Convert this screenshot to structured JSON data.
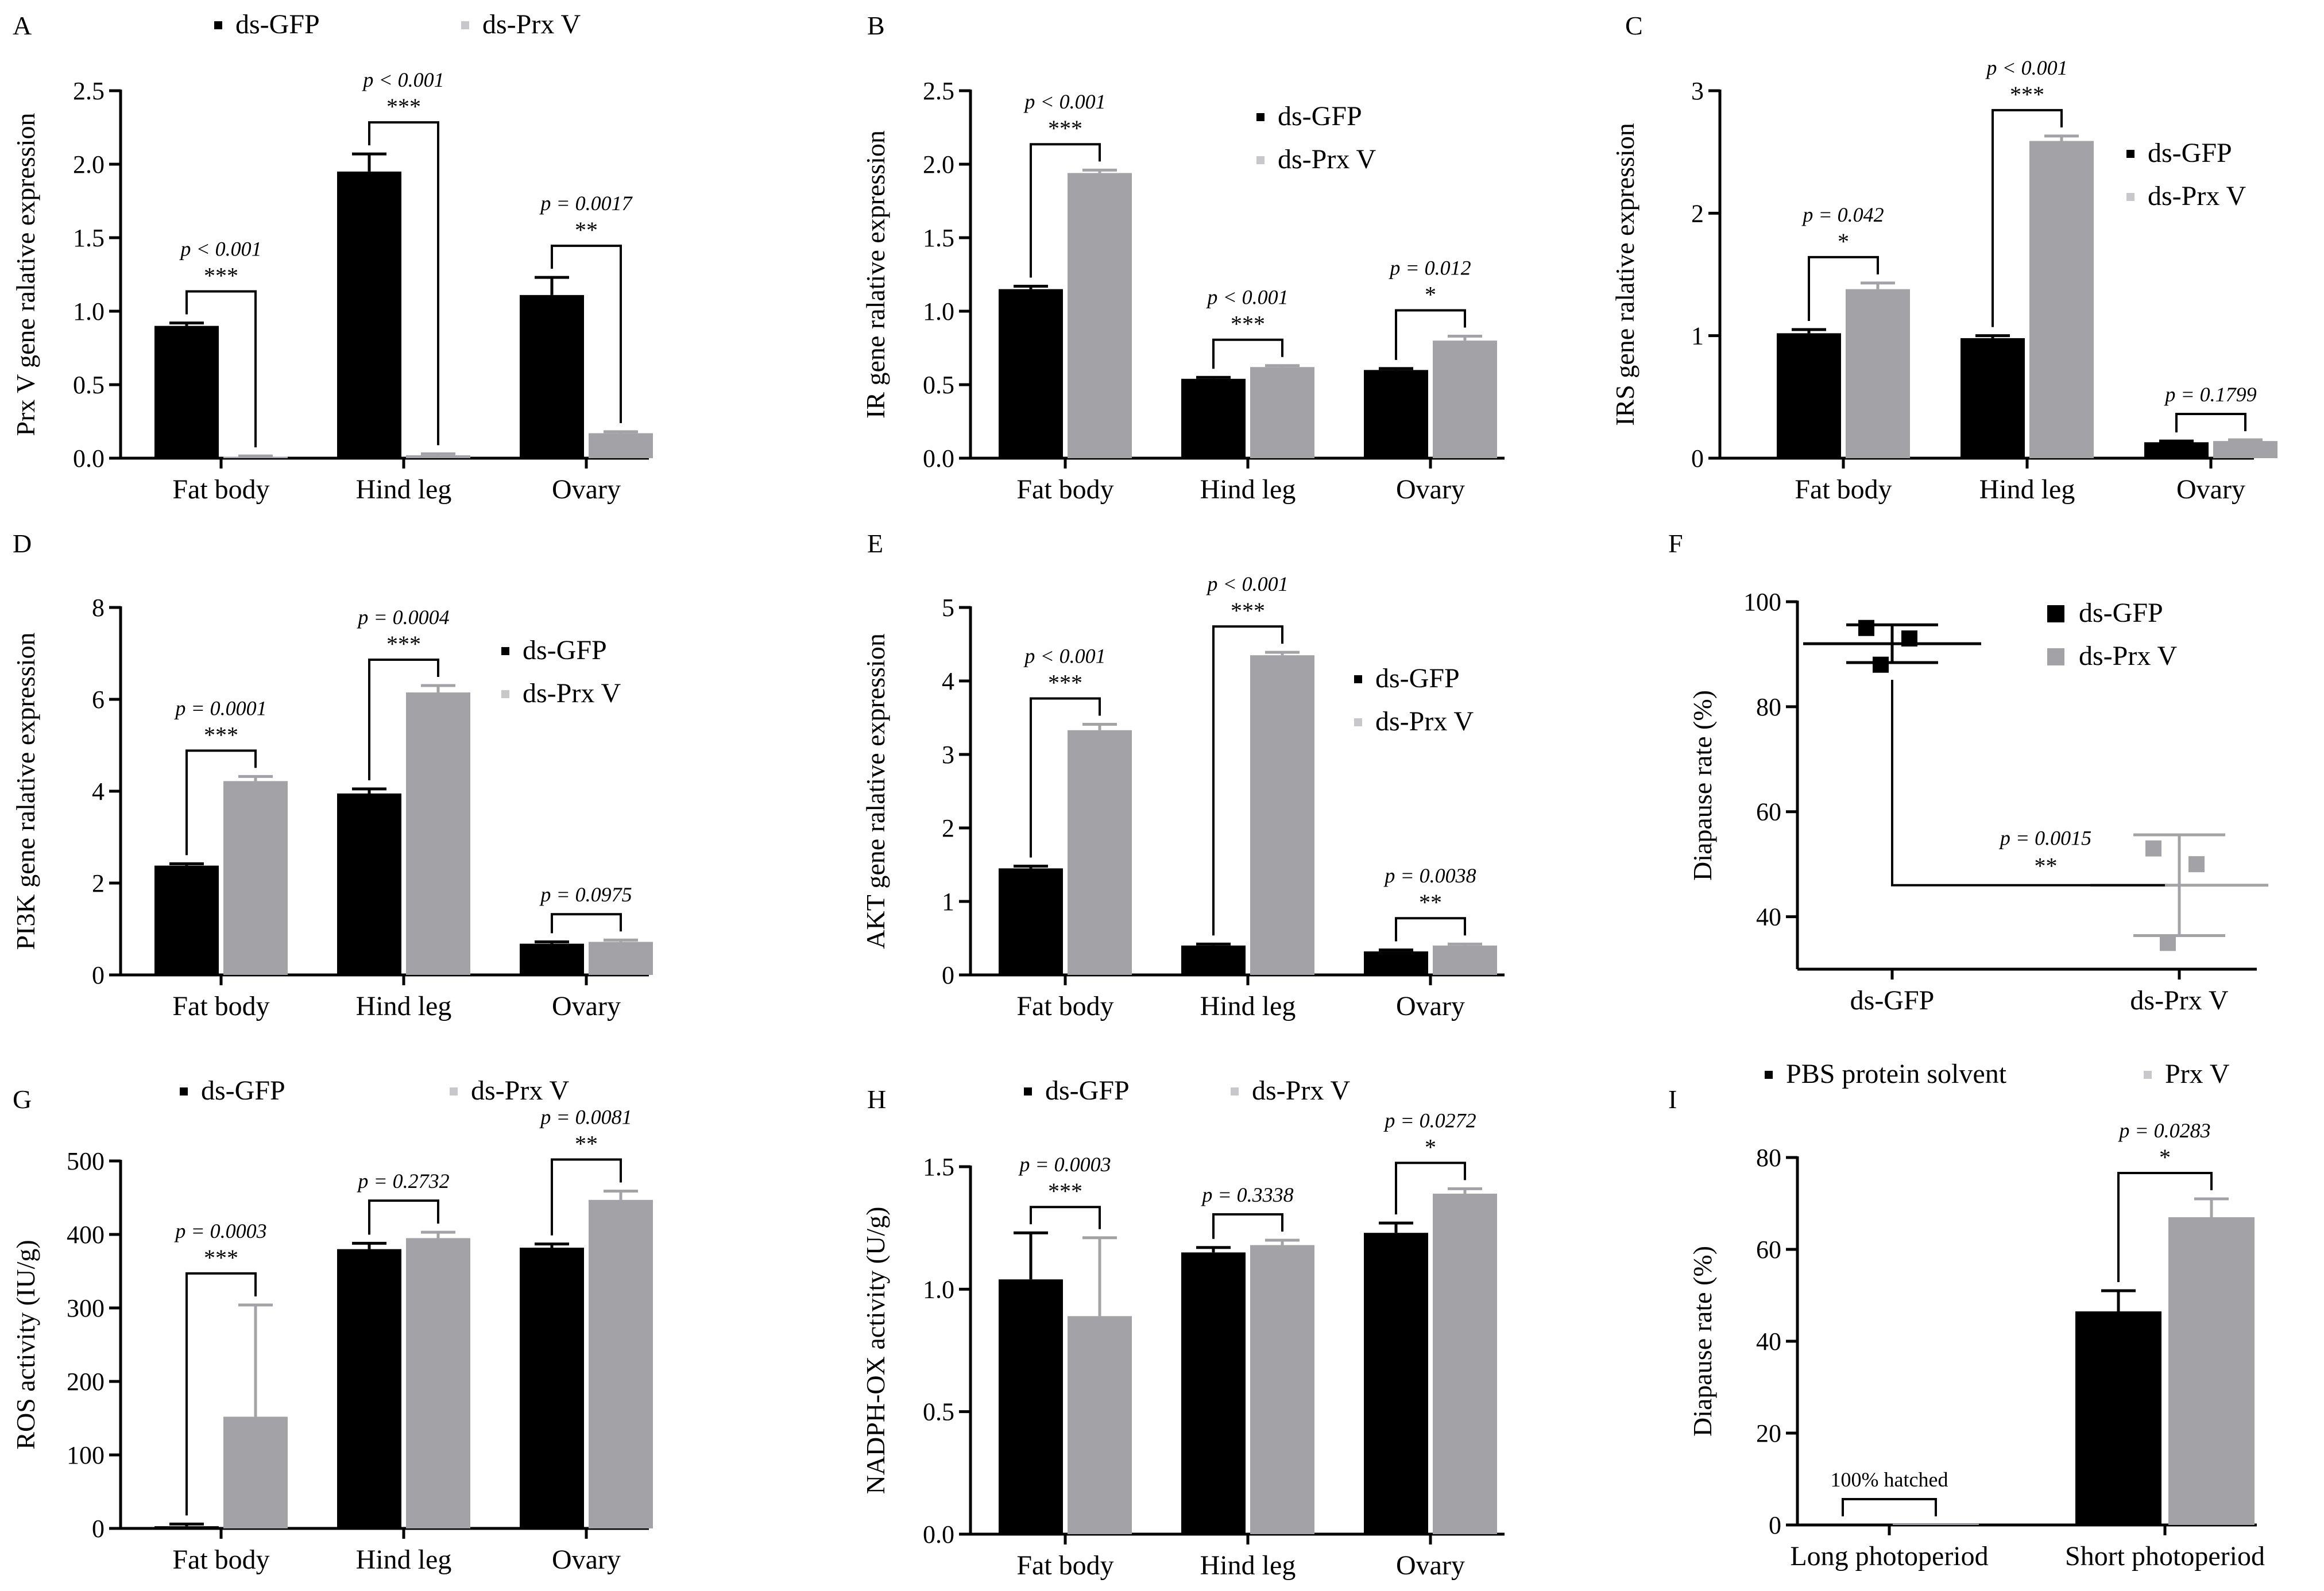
{
  "colors": {
    "ds_gfp": "#000000",
    "ds_prx": "#a3a3a7",
    "axis": "#000000"
  },
  "chart_data": [
    {
      "id": "A",
      "type": "bar",
      "title": "",
      "ylabel": "Prx V gene ralative expression",
      "xlabel": "",
      "ylim": [
        0,
        2.5
      ],
      "yticks": [
        "0.0",
        "0.5",
        "1.0",
        "1.5",
        "2.0",
        "2.5"
      ],
      "categories": [
        "Fat body",
        "Hind leg",
        "Ovary"
      ],
      "series": [
        {
          "name": "ds-GFP",
          "values": [
            0.9,
            1.95,
            1.11
          ],
          "errors": [
            0.02,
            0.12,
            0.12
          ]
        },
        {
          "name": "ds-Prx V",
          "values": [
            0.01,
            0.02,
            0.17
          ],
          "errors": [
            0.005,
            0.01,
            0.01
          ]
        }
      ],
      "legend": "top",
      "annotations": [
        {
          "p": "p < 0.001",
          "stars": "***",
          "cat": 0
        },
        {
          "p": "p < 0.001",
          "stars": "***",
          "cat": 1
        },
        {
          "p": "p = 0.0017",
          "stars": "**",
          "cat": 2
        }
      ]
    },
    {
      "id": "B",
      "type": "bar",
      "title": "",
      "ylabel": "IR gene ralative expression",
      "xlabel": "",
      "ylim": [
        0,
        2.5
      ],
      "yticks": [
        "0.0",
        "0.5",
        "1.0",
        "1.5",
        "2.0",
        "2.5"
      ],
      "categories": [
        "Fat body",
        "Hind leg",
        "Ovary"
      ],
      "series": [
        {
          "name": "ds-GFP",
          "values": [
            1.15,
            0.54,
            0.6
          ],
          "errors": [
            0.02,
            0.01,
            0.01
          ]
        },
        {
          "name": "ds-Prx V",
          "values": [
            1.94,
            0.62,
            0.8
          ],
          "errors": [
            0.02,
            0.01,
            0.03
          ]
        }
      ],
      "legend": "right",
      "annotations": [
        {
          "p": "p < 0.001",
          "stars": "***",
          "cat": 0
        },
        {
          "p": "p < 0.001",
          "stars": "***",
          "cat": 1
        },
        {
          "p": "p = 0.012",
          "stars": "*",
          "cat": 2
        }
      ]
    },
    {
      "id": "C",
      "type": "bar",
      "title": "",
      "ylabel": "IRS gene ralative expression",
      "xlabel": "",
      "ylim": [
        0,
        3
      ],
      "yticks": [
        "0",
        "1",
        "2",
        "3"
      ],
      "categories": [
        "Fat body",
        "Hind leg",
        "Ovary"
      ],
      "series": [
        {
          "name": "ds-GFP",
          "values": [
            1.02,
            0.98,
            0.13
          ],
          "errors": [
            0.03,
            0.02,
            0.01
          ]
        },
        {
          "name": "ds-Prx V",
          "values": [
            1.38,
            2.59,
            0.14
          ],
          "errors": [
            0.05,
            0.04,
            0.01
          ]
        }
      ],
      "legend": "right",
      "annotations": [
        {
          "p": "p = 0.042",
          "stars": "*",
          "cat": 0
        },
        {
          "p": "p < 0.001",
          "stars": "***",
          "cat": 1
        },
        {
          "p": "p = 0.1799",
          "stars": "",
          "cat": 2
        }
      ]
    },
    {
      "id": "D",
      "type": "bar",
      "title": "",
      "ylabel": "PI3K gene ralative expression",
      "xlabel": "",
      "ylim": [
        0,
        8
      ],
      "yticks": [
        "0",
        "2",
        "4",
        "6",
        "8"
      ],
      "categories": [
        "Fat body",
        "Hind leg",
        "Ovary"
      ],
      "series": [
        {
          "name": "ds-GFP",
          "values": [
            2.38,
            3.95,
            0.68
          ],
          "errors": [
            0.04,
            0.1,
            0.04
          ]
        },
        {
          "name": "ds-Prx V",
          "values": [
            4.22,
            6.15,
            0.72
          ],
          "errors": [
            0.1,
            0.15,
            0.04
          ]
        }
      ],
      "legend": "right",
      "annotations": [
        {
          "p": "p = 0.0001",
          "stars": "***",
          "cat": 0
        },
        {
          "p": "p = 0.0004",
          "stars": "***",
          "cat": 1
        },
        {
          "p": "p = 0.0975",
          "stars": "",
          "cat": 2
        }
      ]
    },
    {
      "id": "E",
      "type": "bar",
      "title": "",
      "ylabel": "AKT gene ralative expression",
      "xlabel": "",
      "ylim": [
        0,
        5
      ],
      "yticks": [
        "0",
        "1",
        "2",
        "3",
        "4",
        "5"
      ],
      "categories": [
        "Fat body",
        "Hind leg",
        "Ovary"
      ],
      "series": [
        {
          "name": "ds-GFP",
          "values": [
            1.45,
            0.4,
            0.32
          ],
          "errors": [
            0.03,
            0.02,
            0.02
          ]
        },
        {
          "name": "ds-Prx V",
          "values": [
            3.33,
            4.35,
            0.4
          ],
          "errors": [
            0.08,
            0.04,
            0.02
          ]
        }
      ],
      "legend": "right",
      "annotations": [
        {
          "p": "p < 0.001",
          "stars": "***",
          "cat": 0
        },
        {
          "p": "p < 0.001",
          "stars": "***",
          "cat": 1
        },
        {
          "p": "p = 0.0038",
          "stars": "**",
          "cat": 2
        }
      ]
    },
    {
      "id": "F",
      "type": "scatter",
      "title": "",
      "ylabel": "Diapause rate (%)",
      "xlabel": "",
      "ylim": [
        30,
        100
      ],
      "yticks": [
        "40",
        "60",
        "80",
        "100"
      ],
      "categories": [
        "ds-GFP",
        "ds-Prx V"
      ],
      "series": [
        {
          "name": "ds-GFP",
          "points": [
            95,
            93,
            88
          ],
          "mean": 92,
          "sd": 3.6
        },
        {
          "name": "ds-Prx V",
          "points": [
            53,
            50,
            35
          ],
          "mean": 46,
          "sd": 9.6
        }
      ],
      "legend": "right",
      "annotations": [
        {
          "p": "p = 0.0015",
          "stars": "**"
        }
      ]
    },
    {
      "id": "G",
      "type": "bar",
      "title": "",
      "ylabel": "ROS activity (IU/g)",
      "xlabel": "",
      "ylim": [
        0,
        500
      ],
      "yticks": [
        "0",
        "100",
        "200",
        "300",
        "400",
        "500"
      ],
      "categories": [
        "Fat body",
        "Hind leg",
        "Ovary"
      ],
      "series": [
        {
          "name": "ds-GFP",
          "values": [
            3,
            380,
            382
          ],
          "errors": [
            3,
            8,
            5
          ]
        },
        {
          "name": "ds-Prx V",
          "values": [
            152,
            395,
            447
          ],
          "errors": [
            152,
            8,
            12
          ]
        }
      ],
      "legend": "top",
      "annotations": [
        {
          "p": "p = 0.0003",
          "stars": "***",
          "cat": 0
        },
        {
          "p": "p = 0.2732",
          "stars": "",
          "cat": 1
        },
        {
          "p": "p = 0.0081",
          "stars": "**",
          "cat": 2
        }
      ]
    },
    {
      "id": "H",
      "type": "bar",
      "title": "",
      "ylabel": "NADPH-OX activity (U/g)",
      "xlabel": "",
      "ylim": [
        0,
        1.5
      ],
      "yticks": [
        "0.0",
        "0.5",
        "1.0",
        "1.5"
      ],
      "categories": [
        "Fat body",
        "Hind leg",
        "Ovary"
      ],
      "series": [
        {
          "name": "ds-GFP",
          "values": [
            1.04,
            1.15,
            1.23
          ],
          "errors": [
            0.19,
            0.02,
            0.04
          ]
        },
        {
          "name": "ds-Prx V",
          "values": [
            0.89,
            1.18,
            1.39
          ],
          "errors": [
            0.32,
            0.02,
            0.02
          ]
        }
      ],
      "legend": "top",
      "annotations": [
        {
          "p": "p = 0.0003",
          "stars": "***",
          "cat": 0
        },
        {
          "p": "p = 0.3338",
          "stars": "",
          "cat": 1
        },
        {
          "p": "p = 0.0272",
          "stars": "*",
          "cat": 2
        }
      ]
    },
    {
      "id": "I",
      "type": "bar",
      "title": "",
      "ylabel": "Diapause rate (%)",
      "xlabel": "",
      "ylim": [
        0,
        80
      ],
      "yticks": [
        "0",
        "20",
        "40",
        "60",
        "80"
      ],
      "categories": [
        "Long photoperiod",
        "Short photoperiod"
      ],
      "series": [
        {
          "name": "PBS protein solvent",
          "values": [
            0,
            46.5
          ],
          "errors": [
            0,
            4.5
          ]
        },
        {
          "name": "Prx V",
          "values": [
            0,
            67
          ],
          "errors": [
            0,
            4
          ]
        }
      ],
      "legend": "top",
      "annotations": [
        {
          "text": "100% hatched",
          "cat": 0
        },
        {
          "p": "p = 0.0283",
          "stars": "*",
          "cat": 1
        }
      ]
    }
  ]
}
